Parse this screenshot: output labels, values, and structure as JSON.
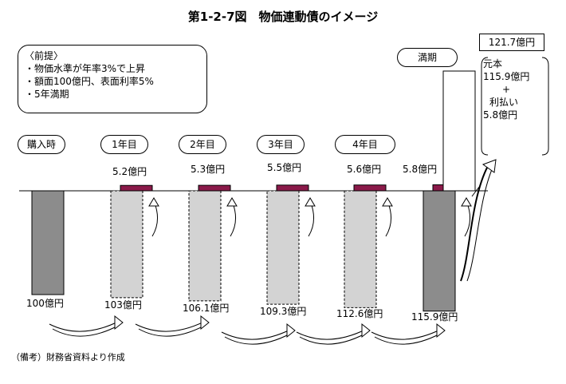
{
  "title": "第1-2-7図　物価連動債のイメージ",
  "premise": {
    "heading": "〈前提〉",
    "lines": [
      "・物価水準が年率3%で上昇",
      "・額面100億円、表面利率5%",
      "・5年満期"
    ]
  },
  "periods": [
    "購入時",
    "1年目",
    "2年目",
    "3年目",
    "4年目",
    "満期"
  ],
  "interest_labels": [
    "5.2億円",
    "5.3億円",
    "5.5億円",
    "5.6億円",
    "5.8億円"
  ],
  "principal_labels": [
    "100億円",
    "103億円",
    "106.1億円",
    "109.3億円",
    "112.6億円",
    "115.9億円"
  ],
  "maturity": {
    "total": "121.7億円",
    "principal_label": "元本",
    "principal_value": "115.9億円",
    "plus": "+",
    "interest_label": "利払い",
    "interest_value": "5.8億円"
  },
  "source_note": "（備考）財務省資料より作成",
  "colors": {
    "solid_bar": "#8c8c8c",
    "dashed_bar": "#d3d3d3",
    "coupon": "#8b1a4a",
    "line": "#000000"
  },
  "chart_data": {
    "type": "bar",
    "categories": [
      "購入時",
      "1年目",
      "2年目",
      "3年目",
      "4年目",
      "満期"
    ],
    "principal": [
      100,
      103,
      106.1,
      109.3,
      112.6,
      115.9
    ],
    "interest": [
      null,
      5.2,
      5.3,
      5.5,
      5.6,
      5.8
    ],
    "maturity_total": 121.7,
    "unit": "億円"
  }
}
